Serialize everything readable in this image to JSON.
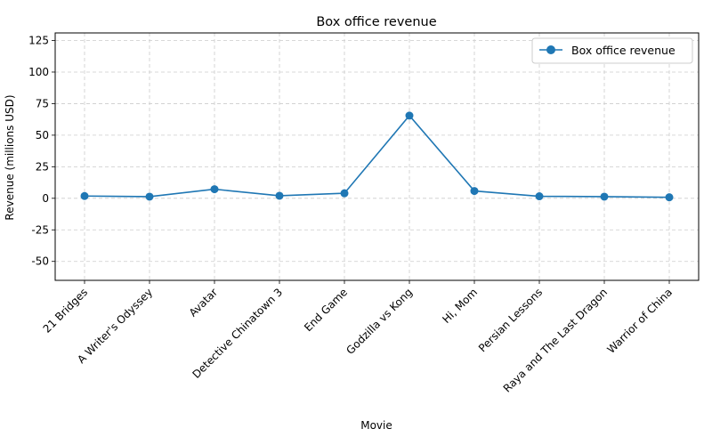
{
  "chart_data": {
    "type": "line",
    "title": "Box office revenue",
    "xlabel": "Movie",
    "ylabel": "Revenue (millions USD)",
    "categories": [
      "21 Bridges",
      "A Writer's Odyssey",
      "Avatar",
      "Detective Chinatown 3",
      "End Game",
      "Godzilla vs Kong",
      "Hi, Mom",
      "Persian Lessons",
      "Raya and The Last Dragon",
      "Warrior of China"
    ],
    "series": [
      {
        "name": "Box office revenue",
        "color": "#1f77b4",
        "marker": "circle",
        "values": [
          1.8,
          1.3,
          7.2,
          2.0,
          4.0,
          65.5,
          5.8,
          1.6,
          1.3,
          0.8
        ]
      }
    ],
    "ylim": [
      -65,
      131
    ],
    "yticks": [
      -50,
      -25,
      0,
      25,
      50,
      75,
      100,
      125
    ],
    "grid": true,
    "legend": "top-right"
  }
}
